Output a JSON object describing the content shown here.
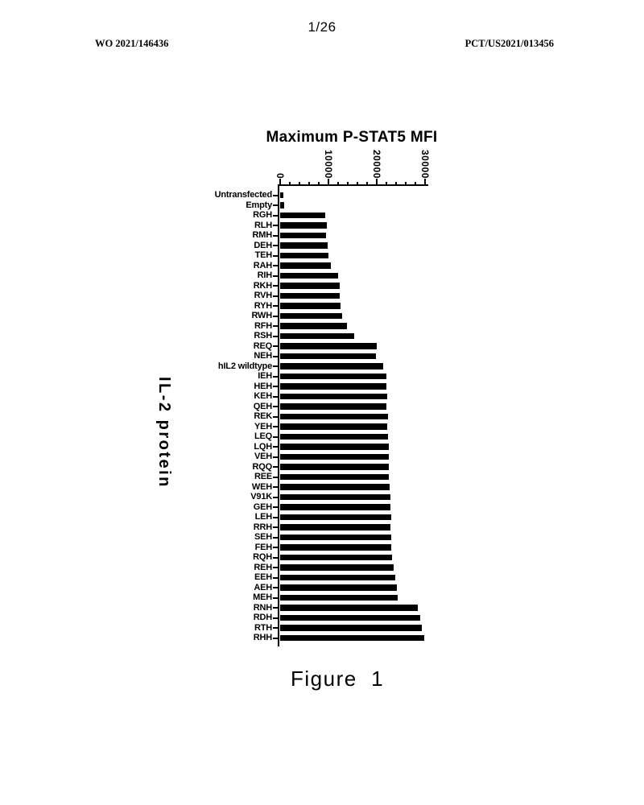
{
  "header": {
    "page_number": "1/26",
    "publication_number": "WO 2021/146436",
    "application_number": "PCT/US2021/013456"
  },
  "figure": {
    "caption": "Figure  1"
  },
  "chart_data": {
    "type": "bar",
    "orientation": "horizontal",
    "title": "Maximum P-STAT5 MFI",
    "ylabel": "IL-2 protein",
    "xlabel": "",
    "xlim": [
      0,
      30000
    ],
    "x_ticks": [
      0,
      10000,
      20000,
      30000
    ],
    "x_minor_tick_interval": 2000,
    "grid": false,
    "legend": "none",
    "bar_color": "#000000",
    "categories": [
      "Untransfected",
      "Empty",
      "RGH",
      "RLH",
      "RMH",
      "DEH",
      "TEH",
      "RAH",
      "RIH",
      "RKH",
      "RVH",
      "RYH",
      "RWH",
      "RFH",
      "RSH",
      "REQ",
      "NEH",
      "hIL2 wildtype",
      "IEH",
      "HEH",
      "KEH",
      "QEH",
      "REK",
      "YEH",
      "LEQ",
      "LQH",
      "VEH",
      "RQQ",
      "REE",
      "WEH",
      "V91K",
      "GEH",
      "LEH",
      "RRH",
      "SEH",
      "FEH",
      "RQH",
      "REH",
      "EEH",
      "AEH",
      "MEH",
      "RNH",
      "RDH",
      "RTH",
      "RHH"
    ],
    "values": [
      800,
      900,
      9400,
      9700,
      9650,
      9950,
      10000,
      10500,
      12150,
      12350,
      12450,
      12550,
      12900,
      13900,
      15400,
      20100,
      19950,
      21400,
      22050,
      22150,
      22300,
      22100,
      22400,
      22300,
      22400,
      22500,
      22500,
      22550,
      22650,
      22800,
      22850,
      22950,
      23050,
      22950,
      23050,
      23100,
      23250,
      23500,
      23900,
      24250,
      24350,
      28550,
      29100,
      29450,
      29950
    ]
  }
}
